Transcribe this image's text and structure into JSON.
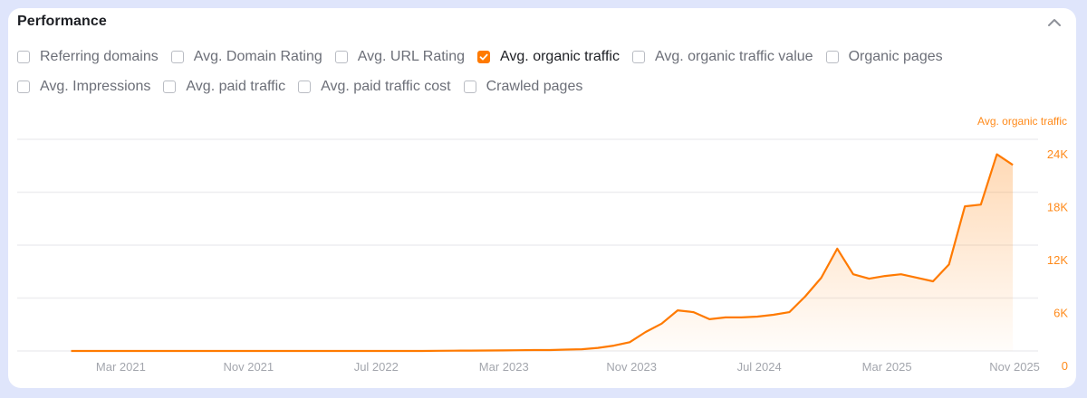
{
  "panel": {
    "title": "Performance",
    "collapse_icon": "chevron-up-icon"
  },
  "options": {
    "rows": [
      [
        {
          "label": "Referring domains",
          "checked": false
        },
        {
          "label": "Avg. Domain Rating",
          "checked": false
        },
        {
          "label": "Avg. URL Rating",
          "checked": false
        },
        {
          "label": "Avg. organic traffic",
          "checked": true
        },
        {
          "label": "Avg. organic traffic value",
          "checked": false
        },
        {
          "label": "Organic pages",
          "checked": false
        }
      ],
      [
        {
          "label": "Avg. Impressions",
          "checked": false
        },
        {
          "label": "Avg. paid traffic",
          "checked": false
        },
        {
          "label": "Avg. paid traffic cost",
          "checked": false
        },
        {
          "label": "Crawled pages",
          "checked": false
        }
      ]
    ]
  },
  "colors": {
    "accent": "#ff7a00",
    "axis_label": "#ff8a1a",
    "grid": "#eeeef0",
    "x_tick": "#a3a6ad",
    "background": "#dfe5fb"
  },
  "chart_data": {
    "type": "area",
    "title": "",
    "series_label": "Avg. organic traffic",
    "xlabel": "",
    "ylabel": "Avg. organic traffic",
    "y_axis_position": "right",
    "grid": true,
    "ylim": [
      0,
      24000
    ],
    "y_ticks": [
      0,
      6000,
      12000,
      18000,
      24000
    ],
    "y_tick_labels": [
      "0",
      "6K",
      "12K",
      "18K",
      "24K"
    ],
    "x_tick_labels": [
      "Mar 2021",
      "Nov 2021",
      "Jul 2022",
      "Mar 2023",
      "Nov 2023",
      "Jul 2024",
      "Mar 2025",
      "Nov 2025"
    ],
    "x_tick_indices": [
      3,
      11,
      19,
      27,
      35,
      43,
      51,
      59
    ],
    "x_start": "Dec 2020",
    "x_end": "Nov 2025",
    "x_interval": "monthly",
    "series": [
      {
        "name": "Avg. organic traffic",
        "color": "#ff7a00",
        "values": [
          0,
          0,
          0,
          0,
          0,
          0,
          0,
          0,
          0,
          0,
          0,
          0,
          0,
          0,
          0,
          0,
          0,
          0,
          0,
          0,
          0,
          0,
          0,
          20,
          30,
          40,
          50,
          60,
          80,
          100,
          100,
          150,
          200,
          350,
          600,
          1000,
          2150,
          3100,
          4600,
          4400,
          3600,
          3800,
          3800,
          3900,
          4100,
          4400,
          6200,
          8300,
          11600,
          8700,
          8200,
          8500,
          8700,
          8300,
          7900,
          9800,
          16400,
          16600,
          22300,
          21100
        ]
      }
    ]
  }
}
